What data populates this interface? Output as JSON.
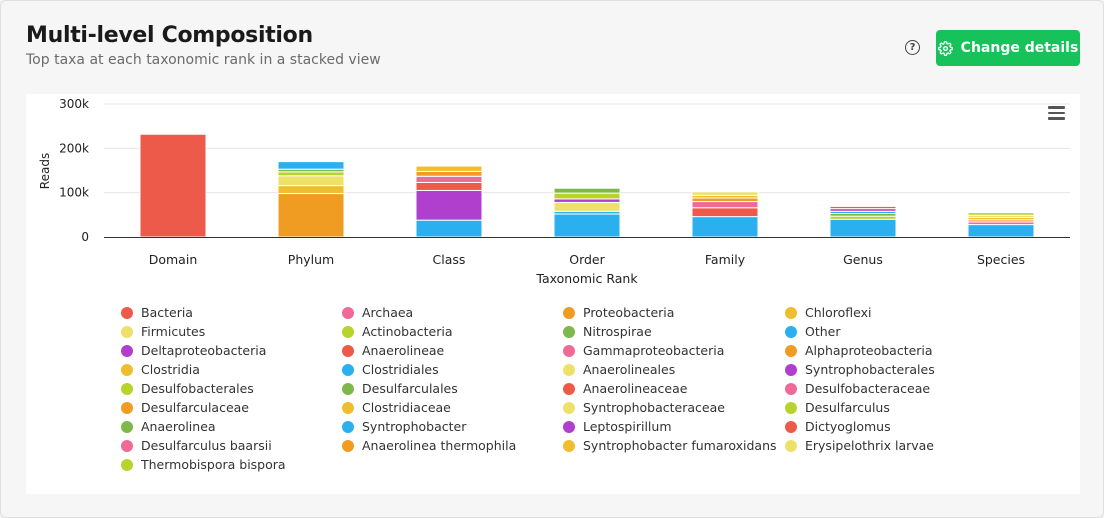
{
  "header": {
    "title": "Multi-level Composition",
    "subtitle": "Top taxa at each taxonomic rank in a stacked view",
    "help_glyph": "?",
    "change_details_label": "Change details"
  },
  "colors": {
    "accent": "#17c25a"
  },
  "chart_data": {
    "type": "bar",
    "stacked": true,
    "xlabel": "Taxonomic Rank",
    "ylabel": "Reads",
    "ylim": [
      0,
      300000
    ],
    "yticks": [
      {
        "value": 0,
        "label": "0"
      },
      {
        "value": 100000,
        "label": "100k"
      },
      {
        "value": 200000,
        "label": "200k"
      },
      {
        "value": 300000,
        "label": "300k"
      }
    ],
    "grid": true,
    "legend_position": "bottom",
    "categories": [
      "Domain",
      "Phylum",
      "Class",
      "Order",
      "Family",
      "Genus",
      "Species"
    ],
    "series": [
      {
        "name": "Bacteria",
        "color": "#ee5a4a",
        "values": [
          232000,
          0,
          0,
          0,
          0,
          0,
          0
        ]
      },
      {
        "name": "Archaea",
        "color": "#f06a98",
        "values": [
          2000,
          0,
          0,
          0,
          0,
          0,
          0
        ]
      },
      {
        "name": "Proteobacteria",
        "color": "#f09c22",
        "values": [
          0,
          98000,
          0,
          0,
          0,
          0,
          0
        ]
      },
      {
        "name": "Chloroflexi",
        "color": "#f0bd2e",
        "values": [
          0,
          18000,
          0,
          0,
          0,
          0,
          0
        ]
      },
      {
        "name": "Firmicutes",
        "color": "#ede16a",
        "values": [
          0,
          22000,
          0,
          0,
          0,
          0,
          0
        ]
      },
      {
        "name": "Actinobacteria",
        "color": "#b8d22e",
        "values": [
          0,
          9000,
          0,
          0,
          0,
          0,
          0
        ]
      },
      {
        "name": "Nitrospirae",
        "color": "#7fb84a",
        "values": [
          0,
          6000,
          0,
          0,
          0,
          0,
          0
        ]
      },
      {
        "name": "Other",
        "color": "#2ab0ee",
        "values": [
          0,
          17000,
          38000,
          52000,
          46000,
          40000,
          28000
        ]
      },
      {
        "name": "Deltaproteobacteria",
        "color": "#b03fce",
        "values": [
          0,
          0,
          67000,
          0,
          0,
          0,
          0
        ]
      },
      {
        "name": "Anaerolineae",
        "color": "#ee5a4a",
        "values": [
          0,
          0,
          18000,
          0,
          0,
          0,
          0
        ]
      },
      {
        "name": "Gammaproteobacteria",
        "color": "#f06a98",
        "values": [
          0,
          0,
          14000,
          0,
          0,
          0,
          0
        ]
      },
      {
        "name": "Alphaproteobacteria",
        "color": "#f09c22",
        "values": [
          0,
          0,
          11000,
          0,
          0,
          0,
          0
        ]
      },
      {
        "name": "Clostridia",
        "color": "#f0bd2e",
        "values": [
          0,
          0,
          12000,
          0,
          0,
          0,
          0
        ]
      },
      {
        "name": "Clostridiales",
        "color": "#2ab0ee",
        "values": [
          0,
          0,
          0,
          6000,
          0,
          0,
          0
        ]
      },
      {
        "name": "Anaerolineales",
        "color": "#ede16a",
        "values": [
          0,
          0,
          0,
          20000,
          0,
          0,
          0
        ]
      },
      {
        "name": "Syntrophobacterales",
        "color": "#b03fce",
        "values": [
          0,
          0,
          0,
          8000,
          0,
          0,
          0
        ]
      },
      {
        "name": "Desulfobacterales",
        "color": "#b8d22e",
        "values": [
          0,
          0,
          0,
          13000,
          0,
          0,
          0
        ]
      },
      {
        "name": "Desulfarculales",
        "color": "#7fb84a",
        "values": [
          0,
          0,
          0,
          11000,
          0,
          0,
          0
        ]
      },
      {
        "name": "Anaerolineaceae",
        "color": "#ee5a4a",
        "values": [
          0,
          0,
          0,
          0,
          20000,
          0,
          0
        ]
      },
      {
        "name": "Desulfobacteraceae",
        "color": "#f06a98",
        "values": [
          0,
          0,
          0,
          0,
          14000,
          0,
          0
        ]
      },
      {
        "name": "Desulfarculaceae",
        "color": "#f09c22",
        "values": [
          0,
          0,
          0,
          0,
          8000,
          0,
          0
        ]
      },
      {
        "name": "Clostridiaceae",
        "color": "#f0bd2e",
        "values": [
          0,
          0,
          0,
          0,
          6000,
          0,
          0
        ]
      },
      {
        "name": "Syntrophobacteraceae",
        "color": "#ede16a",
        "values": [
          0,
          0,
          0,
          0,
          8000,
          0,
          0
        ]
      },
      {
        "name": "Desulfarculus",
        "color": "#b8d22e",
        "values": [
          0,
          0,
          0,
          0,
          0,
          7000,
          0
        ]
      },
      {
        "name": "Anaerolinea",
        "color": "#7fb84a",
        "values": [
          0,
          0,
          0,
          0,
          0,
          6000,
          0
        ]
      },
      {
        "name": "Syntrophobacter",
        "color": "#2ab0ee",
        "values": [
          0,
          0,
          0,
          0,
          0,
          5000,
          0
        ]
      },
      {
        "name": "Leptospirillum",
        "color": "#b03fce",
        "values": [
          0,
          0,
          0,
          0,
          0,
          6000,
          0
        ]
      },
      {
        "name": "Dictyoglomus",
        "color": "#ee5a4a",
        "values": [
          0,
          0,
          0,
          0,
          0,
          5000,
          0
        ]
      },
      {
        "name": "Desulfarculus baarsii",
        "color": "#f06a98",
        "values": [
          0,
          0,
          0,
          0,
          0,
          0,
          6000
        ]
      },
      {
        "name": "Anaerolinea thermophila",
        "color": "#f09c22",
        "values": [
          0,
          0,
          0,
          0,
          0,
          0,
          5000
        ]
      },
      {
        "name": "Syntrophobacter fumaroxidans",
        "color": "#f0bd2e",
        "values": [
          0,
          0,
          0,
          0,
          0,
          0,
          5000
        ]
      },
      {
        "name": "Erysipelothrix larvae",
        "color": "#ede16a",
        "values": [
          0,
          0,
          0,
          0,
          0,
          0,
          5000
        ]
      },
      {
        "name": "Thermobispora bispora",
        "color": "#b8d22e",
        "values": [
          0,
          0,
          0,
          0,
          0,
          0,
          6000
        ]
      }
    ]
  }
}
